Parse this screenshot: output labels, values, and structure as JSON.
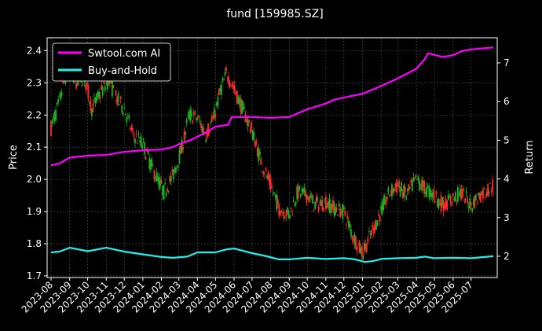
{
  "chart_data": {
    "type": "line",
    "title": "fund [159985.SZ]",
    "ylabel_left": "Price",
    "ylabel_right": "Return",
    "grid": true,
    "legend_position": "top-left",
    "y_left_lim": [
      1.695,
      2.44
    ],
    "y_right_lim": [
      1.45,
      7.65
    ],
    "y_left_ticks": [
      "1.7",
      "1.8",
      "1.9",
      "2.0",
      "2.1",
      "2.2",
      "2.3",
      "2.4"
    ],
    "y_right_ticks": [
      "2",
      "3",
      "4",
      "5",
      "6",
      "7"
    ],
    "x_ticks": [
      "2023-08",
      "2023-09",
      "2023-10",
      "2023-11",
      "2023-12",
      "2024-01",
      "2024-02",
      "2024-03",
      "2024-04",
      "2024-05",
      "2024-06",
      "2024-07",
      "2024-08",
      "2024-09",
      "2024-10",
      "2024-11",
      "2024-12",
      "2025-01",
      "2025-02",
      "2025-03",
      "2025-04",
      "2025-05",
      "2025-06",
      "2025-07"
    ],
    "x_range": [
      "2023-08-01",
      "2025-08-07"
    ],
    "price_series": {
      "name": "",
      "type": "candlestick",
      "up_color": "#ff2a2a",
      "down_color": "#1fae1f",
      "points": [
        [
          "2023-08-01",
          2.16
        ],
        [
          "2023-08-15",
          2.24
        ],
        [
          "2023-08-29",
          2.35
        ],
        [
          "2023-09-10",
          2.3
        ],
        [
          "2023-09-25",
          2.32
        ],
        [
          "2023-10-08",
          2.22
        ],
        [
          "2023-10-20",
          2.26
        ],
        [
          "2023-11-05",
          2.31
        ],
        [
          "2023-11-18",
          2.25
        ],
        [
          "2023-12-01",
          2.22
        ],
        [
          "2023-12-15",
          2.14
        ],
        [
          "2024-01-01",
          2.11
        ],
        [
          "2024-01-18",
          2.03
        ],
        [
          "2024-02-05",
          1.96
        ],
        [
          "2024-02-20",
          2.01
        ],
        [
          "2024-03-05",
          2.09
        ],
        [
          "2024-03-18",
          2.2
        ],
        [
          "2024-04-01",
          2.19
        ],
        [
          "2024-04-15",
          2.14
        ],
        [
          "2024-04-28",
          2.19
        ],
        [
          "2024-05-10",
          2.28
        ],
        [
          "2024-05-20",
          2.33
        ],
        [
          "2024-06-01",
          2.28
        ],
        [
          "2024-06-15",
          2.22
        ],
        [
          "2024-07-01",
          2.15
        ],
        [
          "2024-07-15",
          2.06
        ],
        [
          "2024-08-01",
          1.98
        ],
        [
          "2024-08-15",
          1.91
        ],
        [
          "2024-09-01",
          1.89
        ],
        [
          "2024-09-15",
          1.96
        ],
        [
          "2024-10-01",
          1.95
        ],
        [
          "2024-10-15",
          1.92
        ],
        [
          "2024-11-01",
          1.93
        ],
        [
          "2024-11-15",
          1.91
        ],
        [
          "2024-12-01",
          1.9
        ],
        [
          "2024-12-15",
          1.83
        ],
        [
          "2025-01-01",
          1.77
        ],
        [
          "2025-01-15",
          1.83
        ],
        [
          "2025-02-01",
          1.9
        ],
        [
          "2025-02-15",
          1.96
        ],
        [
          "2025-03-01",
          1.98
        ],
        [
          "2025-03-15",
          1.95
        ],
        [
          "2025-04-01",
          2.0
        ],
        [
          "2025-04-15",
          1.97
        ],
        [
          "2025-05-01",
          1.95
        ],
        [
          "2025-05-15",
          1.92
        ],
        [
          "2025-06-01",
          1.94
        ],
        [
          "2025-06-15",
          1.96
        ],
        [
          "2025-07-01",
          1.92
        ],
        [
          "2025-07-15",
          1.95
        ],
        [
          "2025-08-07",
          1.98
        ]
      ]
    },
    "series": [
      {
        "name": "Swtool.com AI",
        "color": "#ff00ff",
        "axis": "right",
        "points": [
          [
            "2023-08-01",
            4.35
          ],
          [
            "2023-08-15",
            4.4
          ],
          [
            "2023-09-01",
            4.55
          ],
          [
            "2023-10-01",
            4.6
          ],
          [
            "2023-11-01",
            4.62
          ],
          [
            "2023-12-01",
            4.7
          ],
          [
            "2024-01-01",
            4.74
          ],
          [
            "2024-02-01",
            4.76
          ],
          [
            "2024-02-20",
            4.82
          ],
          [
            "2024-03-01",
            4.9
          ],
          [
            "2024-03-20",
            5.0
          ],
          [
            "2024-04-15",
            5.2
          ],
          [
            "2024-05-01",
            5.35
          ],
          [
            "2024-05-22",
            5.4
          ],
          [
            "2024-05-28",
            5.6
          ],
          [
            "2024-07-01",
            5.6
          ],
          [
            "2024-08-01",
            5.58
          ],
          [
            "2024-09-01",
            5.6
          ],
          [
            "2024-10-01",
            5.8
          ],
          [
            "2024-11-01",
            5.95
          ],
          [
            "2024-11-15",
            6.05
          ],
          [
            "2024-12-15",
            6.15
          ],
          [
            "2025-01-01",
            6.2
          ],
          [
            "2025-02-01",
            6.4
          ],
          [
            "2025-03-01",
            6.6
          ],
          [
            "2025-04-01",
            6.85
          ],
          [
            "2025-04-15",
            7.1
          ],
          [
            "2025-04-20",
            7.25
          ],
          [
            "2025-05-15",
            7.15
          ],
          [
            "2025-06-01",
            7.2
          ],
          [
            "2025-06-15",
            7.3
          ],
          [
            "2025-07-01",
            7.35
          ],
          [
            "2025-08-07",
            7.4
          ]
        ]
      },
      {
        "name": "Buy-and-Hold",
        "color": "#22eeee",
        "axis": "right",
        "points": [
          [
            "2023-08-01",
            2.1
          ],
          [
            "2023-08-15",
            2.12
          ],
          [
            "2023-09-01",
            2.22
          ],
          [
            "2023-10-01",
            2.13
          ],
          [
            "2023-11-01",
            2.22
          ],
          [
            "2023-12-01",
            2.12
          ],
          [
            "2024-01-01",
            2.05
          ],
          [
            "2024-02-01",
            1.98
          ],
          [
            "2024-02-20",
            1.96
          ],
          [
            "2024-03-15",
            1.99
          ],
          [
            "2024-04-01",
            2.1
          ],
          [
            "2024-05-01",
            2.1
          ],
          [
            "2024-05-20",
            2.18
          ],
          [
            "2024-06-01",
            2.2
          ],
          [
            "2024-07-01",
            2.08
          ],
          [
            "2024-07-20",
            2.02
          ],
          [
            "2024-08-15",
            1.92
          ],
          [
            "2024-09-01",
            1.92
          ],
          [
            "2024-10-01",
            1.96
          ],
          [
            "2024-11-01",
            1.93
          ],
          [
            "2024-12-01",
            1.95
          ],
          [
            "2024-12-20",
            1.92
          ],
          [
            "2025-01-05",
            1.85
          ],
          [
            "2025-01-20",
            1.88
          ],
          [
            "2025-02-01",
            1.93
          ],
          [
            "2025-03-01",
            1.95
          ],
          [
            "2025-04-01",
            1.96
          ],
          [
            "2025-04-15",
            1.99
          ],
          [
            "2025-05-01",
            1.95
          ],
          [
            "2025-06-01",
            1.96
          ],
          [
            "2025-07-01",
            1.95
          ],
          [
            "2025-08-07",
            2.0
          ]
        ]
      }
    ]
  }
}
